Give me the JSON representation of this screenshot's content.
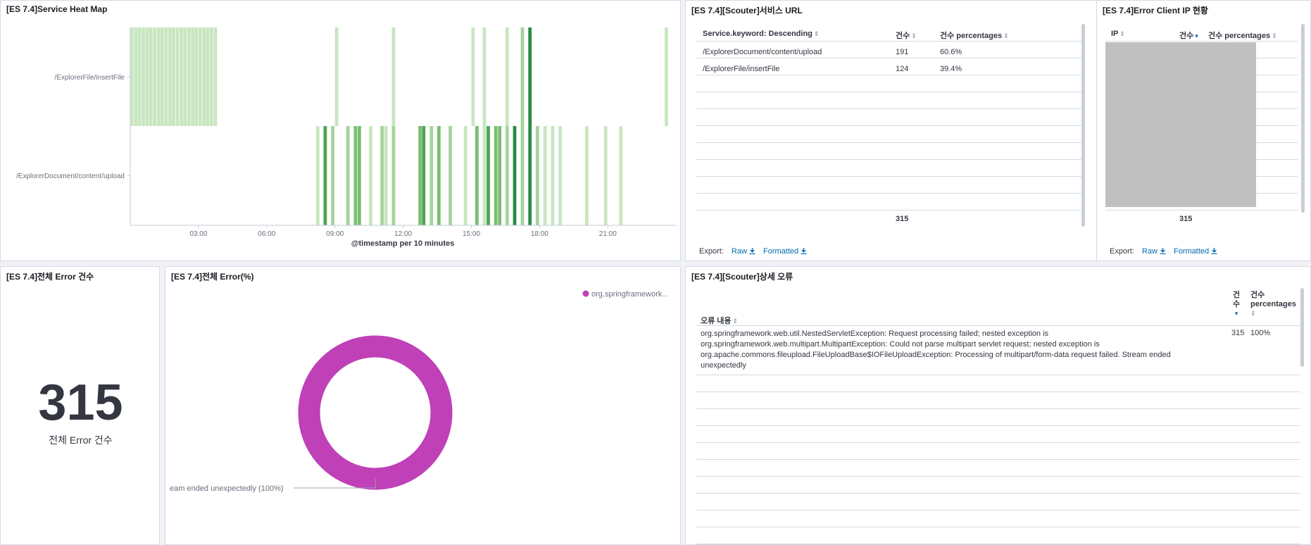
{
  "heatmap": {
    "title": "[ES 7.4]Service Heat Map",
    "y_labels": [
      "/ExplorerFile/insertFile",
      "/ExplorerDocument/content/upload"
    ],
    "x_ticks": [
      "03:00",
      "06:00",
      "09:00",
      "12:00",
      "15:00",
      "18:00",
      "21:00"
    ],
    "x_label": "@timestamp per 10 minutes",
    "colors": [
      "#e4f2e0",
      "#c8e6c0",
      "#a6d49c",
      "#78bf72",
      "#4ea455",
      "#2a8a43"
    ]
  },
  "service_url": {
    "title": "[ES 7.4][Scouter]서비스 URL",
    "columns": [
      "Service.keyword: Descending",
      "건수",
      "건수 percentages"
    ],
    "rows": [
      {
        "url": "/ExplorerDocument/content/upload",
        "count": "191",
        "pct": "60.6%"
      },
      {
        "url": "/ExplorerFile/insertFile",
        "count": "124",
        "pct": "39.4%"
      }
    ],
    "total": "315",
    "export_label": "Export:",
    "raw_label": "Raw",
    "formatted_label": "Formatted"
  },
  "client_ip": {
    "title": "[ES 7.4]Error Client IP 현황",
    "columns": [
      "IP",
      "건수",
      "건수 percentages"
    ],
    "total": "315",
    "export_label": "Export:",
    "raw_label": "Raw",
    "formatted_label": "Formatted"
  },
  "error_count": {
    "title": "[ES 7.4]전체 Error 건수",
    "value": "315",
    "label": "전체 Error 건수"
  },
  "error_pie": {
    "title": "[ES 7.4]전체 Error(%)",
    "legend": "org.springframework...",
    "slice_label": "eam ended unexpectedly (100%)",
    "color": "#bf40b7"
  },
  "detail_error": {
    "title": "[ES 7.4][Scouter]상세 오류",
    "col_content": "오류 내용",
    "col_count_a": "건",
    "col_count_b": "수",
    "col_pct_a": "건수",
    "col_pct_b": "percentages",
    "row_lines": [
      "org.springframework.web.util.NestedServletException: Request processing failed; nested exception is",
      "org.springframework.web.multipart.MultipartException: Could not parse multipart servlet request; nested exception is",
      "org.apache.commons.fileupload.FileUploadBase$IOFileUploadException: Processing of multipart/form-data request failed. Stream ended",
      "unexpectedly"
    ],
    "row_count": "315",
    "row_pct": "100%"
  },
  "chart_data": [
    {
      "type": "heatmap",
      "title": "[ES 7.4]Service Heat Map",
      "xlabel": "@timestamp per 10 minutes",
      "x_ticks": [
        "03:00",
        "06:00",
        "09:00",
        "12:00",
        "15:00",
        "18:00",
        "21:00"
      ],
      "y_categories": [
        "/ExplorerFile/insertFile",
        "/ExplorerDocument/content/upload"
      ],
      "series": [
        {
          "name": "/ExplorerFile/insertFile",
          "cells": [
            [
              0.0,
              1
            ],
            [
              0.17,
              1
            ],
            [
              0.33,
              1
            ],
            [
              0.5,
              1
            ],
            [
              0.67,
              1
            ],
            [
              0.83,
              1
            ],
            [
              1.0,
              1
            ],
            [
              1.17,
              1
            ],
            [
              1.33,
              1
            ],
            [
              1.5,
              1
            ],
            [
              1.67,
              1
            ],
            [
              1.83,
              1
            ],
            [
              2.0,
              1
            ],
            [
              2.17,
              1
            ],
            [
              2.33,
              1
            ],
            [
              2.5,
              1
            ],
            [
              2.67,
              1
            ],
            [
              2.83,
              1
            ],
            [
              3.0,
              1
            ],
            [
              3.17,
              1
            ],
            [
              3.33,
              1
            ],
            [
              3.5,
              1
            ],
            [
              3.67,
              1
            ],
            [
              9.0,
              1
            ],
            [
              11.5,
              1
            ],
            [
              15.0,
              1
            ],
            [
              15.5,
              1
            ],
            [
              16.5,
              1
            ],
            [
              17.17,
              2
            ],
            [
              17.5,
              5
            ],
            [
              23.5,
              1
            ]
          ]
        },
        {
          "name": "/ExplorerDocument/content/upload",
          "cells": [
            [
              8.17,
              1
            ],
            [
              8.5,
              4
            ],
            [
              8.83,
              2
            ],
            [
              9.5,
              2
            ],
            [
              9.83,
              3
            ],
            [
              10.0,
              3
            ],
            [
              10.5,
              1
            ],
            [
              11.0,
              2
            ],
            [
              11.17,
              1
            ],
            [
              11.5,
              2
            ],
            [
              12.67,
              3
            ],
            [
              12.83,
              4
            ],
            [
              13.17,
              2
            ],
            [
              13.5,
              3
            ],
            [
              14.0,
              2
            ],
            [
              14.67,
              1
            ],
            [
              15.17,
              3
            ],
            [
              15.5,
              1
            ],
            [
              15.67,
              4
            ],
            [
              16.0,
              3
            ],
            [
              16.17,
              3
            ],
            [
              16.5,
              2
            ],
            [
              16.83,
              6
            ],
            [
              17.17,
              2
            ],
            [
              17.5,
              6
            ],
            [
              17.83,
              2
            ],
            [
              18.17,
              1
            ],
            [
              18.5,
              1
            ],
            [
              18.83,
              1
            ],
            [
              20.0,
              1
            ],
            [
              20.83,
              1
            ],
            [
              21.5,
              1
            ]
          ]
        }
      ]
    },
    {
      "type": "pie",
      "title": "[ES 7.4]전체 Error(%)",
      "labels": [
        "eam ended unexpectedly (100%)"
      ],
      "values": [
        100
      ],
      "legend": [
        "org.springframework..."
      ],
      "legend_position": "top-right"
    }
  ]
}
